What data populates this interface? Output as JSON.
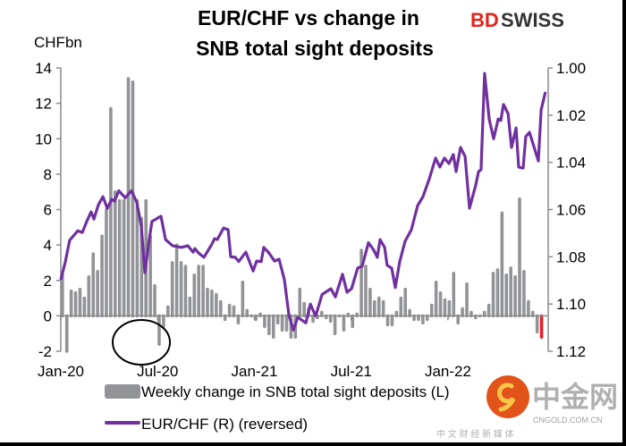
{
  "brand": {
    "logo_bd": "BD",
    "logo_swiss": "SWISS"
  },
  "watermark": {
    "name": "中金网",
    "domain": "CNGOLD.COM.CN",
    "tagline": "中 文 财 经 新 媒 体"
  },
  "colors": {
    "bars": "#929396",
    "line": "#7030A0",
    "last_bar": "#E8202A",
    "brand_red": "#E2231A"
  },
  "chart_data": {
    "type": "bar+line",
    "title": [
      "EUR/CHF vs change in",
      "SNB total sight deposits"
    ],
    "ylabel": "CHFbn",
    "ylim": [
      -2,
      14
    ],
    "yticks": [
      "14",
      "12",
      "10",
      "8",
      "6",
      "4",
      "2",
      "0",
      "-2"
    ],
    "y2lim": [
      1.0,
      1.12
    ],
    "y2_reversed": true,
    "y2ticks": [
      "1.00",
      "1.02",
      "1.04",
      "1.06",
      "1.08",
      "1.10",
      "1.12"
    ],
    "xticks": [
      {
        "label": "Jan-20",
        "month": 0
      },
      {
        "label": "Jul-20",
        "month": 6
      },
      {
        "label": "Jan-21",
        "month": 12
      },
      {
        "label": "Jul-21",
        "month": 18
      },
      {
        "label": "Jan-22",
        "month": 24
      }
    ],
    "x_unit": "months since Jan-20",
    "bars": {
      "name": "Weekly change in SNB total sight deposits (L)",
      "x_start_month": 0.1,
      "x_end_month": 29.8,
      "values": [
        2.3,
        -2,
        1.4,
        1.3,
        1.5,
        1.0,
        2.2,
        3.5,
        2.5,
        4.5,
        6.0,
        11.7,
        7.0,
        6.5,
        6.5,
        13.4,
        13.2,
        6.5,
        5.5,
        6.5,
        4.5,
        1.7,
        -1.6,
        -0.6,
        0.5,
        3.0,
        4.0,
        3.0,
        2.8,
        1.0,
        2.3,
        2.8,
        2.8,
        1.5,
        1.4,
        1.2,
        0.8,
        -0.2,
        0.6,
        0.5,
        -0.4,
        1.9,
        0.3,
        0.0,
        -0.2,
        0.1,
        -0.6,
        -1.0,
        -1.2,
        -0.4,
        -0.8,
        -0.8,
        -1.2,
        -1.2,
        1.5,
        0.7,
        0.4,
        -0.3,
        -0.1,
        0.2,
        -0.1,
        -0.3,
        -1.0,
        0.0,
        -0.8,
        0.1,
        -0.6,
        0.1,
        3.7,
        2.8,
        1.5,
        0.8,
        1.0,
        0.8,
        -0.5,
        -0.5,
        0.2,
        1.0,
        1.5,
        0.3,
        -0.2,
        -0.2,
        -0.4,
        -0.2,
        0.6,
        1.9,
        1.3,
        0.9,
        0.8,
        2.4,
        -0.4,
        0.4,
        1.8,
        0.2,
        -0.1,
        0.0,
        0.2,
        0.6,
        2.4,
        2.6,
        5.8,
        2.3,
        2.7,
        2.2,
        6.6,
        2.5,
        0.8,
        0.2,
        -0.9,
        -1.2
      ]
    },
    "line": {
      "name": "EUR/CHF (R) (reversed)",
      "points": [
        [
          0,
          1.0897
        ],
        [
          0.28,
          1.082
        ],
        [
          0.55,
          1.073
        ],
        [
          1.05,
          1.069
        ],
        [
          1.33,
          1.0697
        ],
        [
          1.61,
          1.065
        ],
        [
          1.88,
          1.061
        ],
        [
          2.05,
          1.064
        ],
        [
          2.33,
          1.058
        ],
        [
          2.61,
          1.0545
        ],
        [
          2.88,
          1.0595
        ],
        [
          3.16,
          1.0556
        ],
        [
          3.33,
          1.0564
        ],
        [
          3.6,
          1.052
        ],
        [
          3.99,
          1.055
        ],
        [
          4.38,
          1.052
        ],
        [
          4.71,
          1.057
        ],
        [
          4.99,
          1.067
        ],
        [
          5.21,
          1.0867
        ],
        [
          5.49,
          1.0723
        ],
        [
          5.65,
          1.065
        ],
        [
          6.21,
          1.0628
        ],
        [
          6.49,
          1.0727
        ],
        [
          6.93,
          1.0753
        ],
        [
          7.48,
          1.076
        ],
        [
          7.87,
          1.0753
        ],
        [
          8.2,
          1.078
        ],
        [
          8.31,
          1.0765
        ],
        [
          8.54,
          1.0784
        ],
        [
          8.87,
          1.0802
        ],
        [
          9.37,
          1.0746
        ],
        [
          9.53,
          1.0723
        ],
        [
          9.7,
          1.0727
        ],
        [
          10.09,
          1.0678
        ],
        [
          10.37,
          1.0685
        ],
        [
          10.53,
          1.08
        ],
        [
          10.81,
          1.0802
        ],
        [
          11.03,
          1.082
        ],
        [
          11.47,
          1.078
        ],
        [
          11.92,
          1.086
        ],
        [
          12.14,
          1.0818
        ],
        [
          12.42,
          1.082
        ],
        [
          12.58,
          1.076
        ],
        [
          12.86,
          1.078
        ],
        [
          13.25,
          1.0818
        ],
        [
          13.53,
          1.081
        ],
        [
          13.86,
          1.0897
        ],
        [
          14.14,
          1.1048
        ],
        [
          14.41,
          1.111
        ],
        [
          14.69,
          1.1056
        ],
        [
          15.19,
          1.108
        ],
        [
          15.47,
          1.1
        ],
        [
          15.63,
          1.1026
        ],
        [
          15.8,
          1.105
        ],
        [
          16.19,
          1.096
        ],
        [
          16.74,
          1.0935
        ],
        [
          17.02,
          1.097
        ],
        [
          17.46,
          1.0874
        ],
        [
          17.74,
          1.095
        ],
        [
          18.02,
          1.0935
        ],
        [
          18.4,
          1.0848
        ],
        [
          18.68,
          1.084
        ],
        [
          19.07,
          1.074
        ],
        [
          19.4,
          1.0772
        ],
        [
          19.62,
          1.0802
        ],
        [
          19.79,
          1.0727
        ],
        [
          20.07,
          1.076
        ],
        [
          20.23,
          1.0836
        ],
        [
          20.51,
          1.0848
        ],
        [
          20.73,
          1.093
        ],
        [
          21.01,
          1.082
        ],
        [
          21.34,
          1.0734
        ],
        [
          21.73,
          1.0685
        ],
        [
          22.12,
          1.0583
        ],
        [
          22.45,
          1.0545
        ],
        [
          22.84,
          1.047
        ],
        [
          23.23,
          1.0382
        ],
        [
          23.5,
          1.042
        ],
        [
          23.78,
          1.0382
        ],
        [
          24.06,
          1.0405
        ],
        [
          24.33,
          1.0367
        ],
        [
          24.5,
          1.0439
        ],
        [
          24.78,
          1.0337
        ],
        [
          25.06,
          1.0375
        ],
        [
          25.33,
          1.0594
        ],
        [
          25.72,
          1.0496
        ],
        [
          25.89,
          1.0439
        ],
        [
          26.05,
          1.0431
        ],
        [
          26.27,
          1.0023
        ],
        [
          26.55,
          1.0216
        ],
        [
          26.83,
          1.03
        ],
        [
          27.11,
          1.0216
        ],
        [
          27.27,
          1.0223
        ],
        [
          27.44,
          1.0155
        ],
        [
          27.72,
          1.0193
        ],
        [
          27.94,
          1.0337
        ],
        [
          28.22,
          1.0254
        ],
        [
          28.38,
          1.042
        ],
        [
          28.66,
          1.0424
        ],
        [
          28.82,
          1.0291
        ],
        [
          29.05,
          1.0273
        ],
        [
          29.6,
          1.0394
        ],
        [
          29.77,
          1.0178
        ],
        [
          30.04,
          1.0102
        ]
      ]
    },
    "legend": [
      "Weekly change in SNB total sight deposits (L)",
      "EUR/CHF (R) (reversed)"
    ],
    "legend_placement": "bottom",
    "grid": false
  }
}
